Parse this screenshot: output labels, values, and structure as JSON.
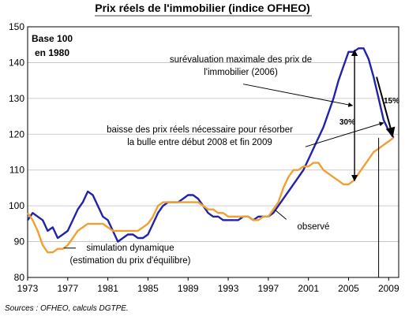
{
  "chart_data": {
    "type": "line",
    "title": "Prix réels de l'immobilier (indice OFHEO)",
    "note": "Base 100 en 1980",
    "note_line1": "Base 100",
    "note_line2": "en 1980",
    "source": "Sources : OFHEO, calculs DGTPE.",
    "xlim": [
      1973,
      2010
    ],
    "ylim": [
      80,
      150
    ],
    "x_ticks": [
      "1973",
      "1977",
      "1981",
      "1985",
      "1989",
      "1993",
      "1997",
      "2001",
      "2005",
      "2009"
    ],
    "y_ticks": [
      "80",
      "90",
      "100",
      "110",
      "120",
      "130",
      "140",
      "150"
    ],
    "grid": true,
    "series": [
      {
        "name": "observé",
        "color": "#2222aa",
        "points": [
          [
            1973,
            96
          ],
          [
            1973.5,
            98
          ],
          [
            1974,
            97
          ],
          [
            1974.5,
            96
          ],
          [
            1975,
            93
          ],
          [
            1975.5,
            94
          ],
          [
            1976,
            91
          ],
          [
            1976.5,
            92
          ],
          [
            1977,
            93
          ],
          [
            1977.5,
            96
          ],
          [
            1978,
            99
          ],
          [
            1978.5,
            101
          ],
          [
            1979,
            104
          ],
          [
            1979.5,
            103
          ],
          [
            1980,
            100
          ],
          [
            1980.5,
            97
          ],
          [
            1981,
            96
          ],
          [
            1981.5,
            93
          ],
          [
            1982,
            90
          ],
          [
            1982.5,
            91
          ],
          [
            1983,
            92
          ],
          [
            1983.5,
            92
          ],
          [
            1984,
            91
          ],
          [
            1984.5,
            91
          ],
          [
            1985,
            92
          ],
          [
            1985.5,
            95
          ],
          [
            1986,
            98
          ],
          [
            1986.5,
            100
          ],
          [
            1987,
            101
          ],
          [
            1987.5,
            101
          ],
          [
            1988,
            101
          ],
          [
            1988.5,
            102
          ],
          [
            1989,
            103
          ],
          [
            1989.5,
            103
          ],
          [
            1990,
            102
          ],
          [
            1990.5,
            100
          ],
          [
            1991,
            98
          ],
          [
            1991.5,
            97
          ],
          [
            1992,
            97
          ],
          [
            1992.5,
            96
          ],
          [
            1993,
            96
          ],
          [
            1993.5,
            96
          ],
          [
            1994,
            96
          ],
          [
            1994.5,
            97
          ],
          [
            1995,
            97
          ],
          [
            1995.5,
            96
          ],
          [
            1996,
            97
          ],
          [
            1996.5,
            97
          ],
          [
            1997,
            97
          ],
          [
            1997.5,
            98
          ],
          [
            1998,
            100
          ],
          [
            1998.5,
            102
          ],
          [
            1999,
            104
          ],
          [
            1999.5,
            106
          ],
          [
            2000,
            108
          ],
          [
            2000.5,
            110
          ],
          [
            2001,
            113
          ],
          [
            2001.5,
            116
          ],
          [
            2002,
            119
          ],
          [
            2002.5,
            122
          ],
          [
            2003,
            126
          ],
          [
            2003.5,
            130
          ],
          [
            2004,
            135
          ],
          [
            2004.5,
            139
          ],
          [
            2005,
            143
          ],
          [
            2005.5,
            143
          ],
          [
            2006,
            144
          ],
          [
            2006.5,
            144
          ],
          [
            2007,
            141
          ],
          [
            2007.5,
            136
          ],
          [
            2008,
            130
          ],
          [
            2008.5,
            124
          ],
          [
            2009,
            121
          ],
          [
            2009.5,
            119
          ]
        ]
      },
      {
        "name": "simulation dynamique",
        "color": "#f0a030",
        "points": [
          [
            1973,
            98
          ],
          [
            1973.5,
            96
          ],
          [
            1974,
            93
          ],
          [
            1974.5,
            89
          ],
          [
            1975,
            87
          ],
          [
            1975.5,
            87
          ],
          [
            1976,
            88
          ],
          [
            1976.5,
            88
          ],
          [
            1977,
            89
          ],
          [
            1977.5,
            91
          ],
          [
            1978,
            93
          ],
          [
            1978.5,
            94
          ],
          [
            1979,
            95
          ],
          [
            1979.5,
            95
          ],
          [
            1980,
            95
          ],
          [
            1980.5,
            95
          ],
          [
            1981,
            94
          ],
          [
            1981.5,
            93
          ],
          [
            1982,
            93
          ],
          [
            1982.5,
            93
          ],
          [
            1983,
            93
          ],
          [
            1983.5,
            93
          ],
          [
            1984,
            93
          ],
          [
            1984.5,
            94
          ],
          [
            1985,
            95
          ],
          [
            1985.5,
            97
          ],
          [
            1986,
            100
          ],
          [
            1986.5,
            101
          ],
          [
            1987,
            101
          ],
          [
            1987.5,
            101
          ],
          [
            1988,
            101
          ],
          [
            1988.5,
            101
          ],
          [
            1989,
            101
          ],
          [
            1989.5,
            101
          ],
          [
            1990,
            101
          ],
          [
            1990.5,
            100
          ],
          [
            1991,
            99
          ],
          [
            1991.5,
            99
          ],
          [
            1992,
            98
          ],
          [
            1992.5,
            98
          ],
          [
            1993,
            97
          ],
          [
            1993.5,
            97
          ],
          [
            1994,
            97
          ],
          [
            1994.5,
            97
          ],
          [
            1995,
            97
          ],
          [
            1995.5,
            96
          ],
          [
            1996,
            96
          ],
          [
            1996.5,
            97
          ],
          [
            1997,
            97
          ],
          [
            1997.5,
            99
          ],
          [
            1998,
            101
          ],
          [
            1998.5,
            105
          ],
          [
            1999,
            108
          ],
          [
            1999.5,
            110
          ],
          [
            2000,
            110
          ],
          [
            2000.5,
            111
          ],
          [
            2001,
            111
          ],
          [
            2001.5,
            112
          ],
          [
            2002,
            112
          ],
          [
            2002.5,
            110
          ],
          [
            2003,
            109
          ],
          [
            2003.5,
            108
          ],
          [
            2004,
            107
          ],
          [
            2004.5,
            106
          ],
          [
            2005,
            106
          ],
          [
            2005.5,
            107
          ],
          [
            2006,
            109
          ],
          [
            2006.5,
            111
          ],
          [
            2007,
            113
          ],
          [
            2007.5,
            115
          ],
          [
            2008,
            116
          ],
          [
            2008.5,
            117
          ],
          [
            2009,
            118
          ],
          [
            2009.5,
            119
          ]
        ]
      }
    ],
    "annotations": {
      "label_obs": "observé",
      "label_sim_line1": "simulation dynamique",
      "label_sim_line2": "(estimation du prix d'équilibre)",
      "sur_line1": "surévaluation maximale des prix de",
      "sur_line2": "l'immobilier (2006)",
      "baisse_line1": "baisse des prix réels nécessaire pour résorber",
      "baisse_line2": "la bulle entre début 2008 et fin 2009",
      "pct30": "30%",
      "pct15": "15%"
    }
  }
}
